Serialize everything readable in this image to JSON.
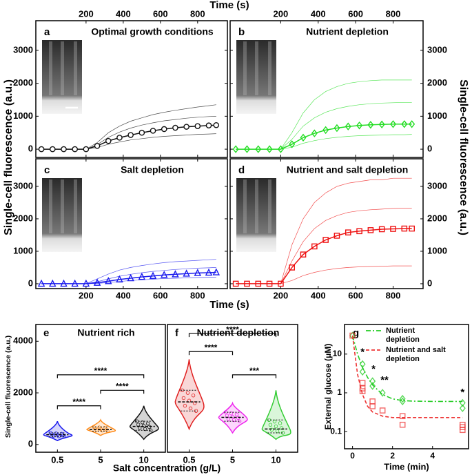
{
  "chart_data": [
    {
      "type": "line",
      "label": "a",
      "title": "Optimal growth conditions",
      "xlabel": "Time (s)",
      "ylabel": "Single-cell fluorescence (a.u.)",
      "x": [
        -40,
        20,
        80,
        140,
        200,
        260,
        320,
        380,
        440,
        500,
        560,
        620,
        680,
        740,
        800,
        860,
        900
      ],
      "values": [
        0,
        0,
        0,
        0,
        0,
        100,
        250,
        350,
        430,
        500,
        560,
        610,
        650,
        680,
        700,
        720,
        730
      ],
      "traces": [
        [
          0,
          0,
          0,
          0,
          0,
          200,
          500,
          700,
          850,
          950,
          1050,
          1120,
          1180,
          1230,
          1280,
          1320,
          1350
        ],
        [
          0,
          0,
          0,
          0,
          0,
          140,
          360,
          520,
          640,
          730,
          800,
          860,
          900,
          940,
          970,
          990,
          1000
        ],
        [
          0,
          0,
          0,
          0,
          0,
          50,
          150,
          220,
          280,
          320,
          360,
          390,
          410,
          430,
          450,
          460,
          470
        ]
      ],
      "color": "#111111",
      "marker": "circle",
      "marker_fill": "#ffffff",
      "xlim": [
        -70,
        960
      ],
      "xticks": [
        200,
        400,
        600,
        800
      ],
      "ylim": [
        -250,
        3900
      ],
      "yticks": [
        0,
        1000,
        2000,
        3000
      ]
    },
    {
      "type": "line",
      "label": "b",
      "title": "Nutrient depletion",
      "ylabel": "Single-cell fluorescence (a.u.)",
      "x": [
        -40,
        20,
        80,
        140,
        200,
        260,
        320,
        380,
        440,
        500,
        560,
        620,
        680,
        740,
        800,
        860,
        900
      ],
      "values": [
        0,
        0,
        0,
        0,
        0,
        150,
        350,
        480,
        580,
        640,
        690,
        720,
        740,
        750,
        760,
        760,
        760
      ],
      "traces": [
        [
          0,
          0,
          0,
          0,
          0,
          500,
          1100,
          1500,
          1750,
          1900,
          2000,
          2050,
          2080,
          2100,
          2100,
          2100,
          2100
        ],
        [
          0,
          0,
          0,
          0,
          0,
          300,
          700,
          950,
          1120,
          1230,
          1300,
          1350,
          1380,
          1400,
          1410,
          1420,
          1420
        ],
        [
          0,
          0,
          0,
          0,
          0,
          60,
          180,
          260,
          320,
          360,
          390,
          410,
          420,
          430,
          440,
          440,
          450
        ]
      ],
      "color": "#22dd22",
      "marker": "diamond",
      "marker_fill": "none",
      "xlim": [
        -70,
        960
      ],
      "xticks": [
        200,
        400,
        600,
        800
      ],
      "ylim": [
        -250,
        3900
      ],
      "yticks": [
        0,
        1000,
        2000,
        3000
      ]
    },
    {
      "type": "line",
      "label": "c",
      "title": "Salt depletion",
      "xlabel": "Time (s)",
      "x": [
        -40,
        20,
        80,
        140,
        200,
        260,
        320,
        380,
        440,
        500,
        560,
        620,
        680,
        740,
        800,
        860,
        900
      ],
      "values": [
        0,
        0,
        0,
        0,
        0,
        30,
        80,
        130,
        170,
        210,
        240,
        270,
        290,
        310,
        330,
        340,
        350
      ],
      "traces": [
        [
          0,
          0,
          0,
          0,
          0,
          150,
          300,
          420,
          500,
          560,
          610,
          650,
          680,
          700,
          720,
          740,
          750
        ],
        [
          0,
          0,
          0,
          0,
          0,
          60,
          150,
          230,
          290,
          340,
          380,
          410,
          440,
          460,
          480,
          490,
          500
        ],
        [
          0,
          0,
          0,
          0,
          0,
          10,
          40,
          70,
          100,
          120,
          140,
          160,
          170,
          180,
          190,
          200,
          200
        ]
      ],
      "color": "#1a1aee",
      "marker": "triangle",
      "marker_fill": "none",
      "xlim": [
        -70,
        960
      ],
      "xticks": [
        200,
        400,
        600,
        800
      ],
      "ylim": [
        -150,
        3850
      ],
      "yticks": [
        0,
        1000,
        2000,
        3000
      ]
    },
    {
      "type": "line",
      "label": "d",
      "title": "Nutrient and salt depletion",
      "x": [
        -40,
        20,
        80,
        140,
        200,
        260,
        320,
        380,
        440,
        500,
        560,
        620,
        680,
        740,
        800,
        860,
        900
      ],
      "values": [
        0,
        0,
        0,
        0,
        0,
        500,
        900,
        1150,
        1350,
        1480,
        1580,
        1620,
        1650,
        1680,
        1690,
        1700,
        1700
      ],
      "traces": [
        [
          0,
          0,
          0,
          0,
          0,
          1200,
          2000,
          2500,
          2800,
          3000,
          3100,
          3150,
          3200,
          3200,
          3250,
          3250,
          3250
        ],
        [
          0,
          0,
          0,
          0,
          0,
          700,
          1300,
          1700,
          1950,
          2100,
          2200,
          2250,
          2280,
          2300,
          2320,
          2330,
          2330
        ],
        [
          0,
          0,
          0,
          0,
          0,
          100,
          250,
          350,
          420,
          470,
          500,
          520,
          530,
          540,
          550,
          550,
          550
        ]
      ],
      "color": "#ee1111",
      "marker": "square",
      "marker_fill": "none",
      "xlim": [
        -70,
        960
      ],
      "xticks": [
        200,
        400,
        600,
        800
      ],
      "ylim": [
        -150,
        3850
      ],
      "yticks": [
        0,
        1000,
        2000,
        3000
      ]
    },
    {
      "type": "violin",
      "label": "e",
      "title": "Nutrient rich",
      "xlabel": "Salt concentration (g/L)",
      "ylabel": "Single-cell fluorescence (a.u.)",
      "categories": [
        "0.5",
        "5",
        "10"
      ],
      "series": [
        {
          "color": "#1a1aee",
          "min": 150,
          "q1": 300,
          "median": 380,
          "q3": 450,
          "max": 900
        },
        {
          "color": "#ff8c1a",
          "min": 350,
          "q1": 520,
          "median": 580,
          "q3": 680,
          "max": 950
        },
        {
          "color": "#111111",
          "min": 200,
          "q1": 550,
          "median": 700,
          "q3": 900,
          "max": 1500
        }
      ],
      "brackets": [
        {
          "between": [
            "0.5",
            "5"
          ],
          "y": 1500,
          "label": "****"
        },
        {
          "between": [
            "5",
            "10"
          ],
          "y": 2100,
          "label": "****"
        },
        {
          "between": [
            "0.5",
            "10"
          ],
          "y": 2700,
          "label": "****"
        }
      ],
      "ylim": [
        -300,
        4650
      ],
      "yticks": [
        0,
        2000,
        4000
      ]
    },
    {
      "type": "violin",
      "label": "f",
      "title": "Nutrient depletion",
      "categories": [
        "0.5",
        "5",
        "10"
      ],
      "series": [
        {
          "color": "#e02020",
          "min": 600,
          "q1": 1300,
          "median": 1650,
          "q3": 2100,
          "max": 3300
        },
        {
          "color": "#ee22ee",
          "min": 450,
          "q1": 900,
          "median": 1050,
          "q3": 1250,
          "max": 1600
        },
        {
          "color": "#33cc33",
          "min": 200,
          "q1": 450,
          "median": 600,
          "q3": 950,
          "max": 2100
        }
      ],
      "brackets": [
        {
          "between": [
            "5",
            "10"
          ],
          "y": 2700,
          "label": "***"
        },
        {
          "between": [
            "0.5",
            "5"
          ],
          "y": 3600,
          "label": "****"
        },
        {
          "between": [
            "0.5",
            "10"
          ],
          "y": 4300,
          "label": "****"
        }
      ],
      "ylim": [
        -300,
        4650
      ]
    },
    {
      "type": "scatter",
      "label": "g",
      "xlabel": "Time (min)",
      "ylabel": "External glucose (μM)",
      "log_y": true,
      "series": [
        {
          "name": "Nutrient depletion",
          "color": "#22cc22",
          "marker": "diamond",
          "dash": "dashdot",
          "x": [
            0,
            0.5,
            0.5,
            1,
            1,
            1.5,
            2.5,
            2.5,
            5.5,
            5.5
          ],
          "values": [
            30,
            5.5,
            3.5,
            2,
            1.5,
            1,
            0.7,
            0.6,
            0.55,
            0.4
          ],
          "fit_x": [
            0,
            0.25,
            0.5,
            0.75,
            1,
            1.5,
            2,
            2.5,
            3,
            4,
            5.5
          ],
          "fit": [
            30,
            10,
            4.5,
            2.5,
            1.6,
            0.9,
            0.7,
            0.63,
            0.61,
            0.6,
            0.6
          ]
        },
        {
          "name": "Nutrient and salt depletion",
          "color": "#ee3333",
          "marker": "square",
          "dash": "dashed",
          "x": [
            0,
            0.5,
            0.5,
            0.5,
            1,
            1,
            1.5,
            2.5,
            2.5,
            5.5,
            5.5,
            5.5
          ],
          "values": [
            30,
            1.8,
            1.3,
            1.1,
            0.6,
            0.45,
            0.35,
            0.25,
            0.15,
            0.15,
            0.13,
            0.11
          ],
          "fit_x": [
            0,
            0.25,
            0.5,
            0.75,
            1,
            1.5,
            2,
            2.5,
            3,
            4,
            5.5
          ],
          "fit": [
            30,
            3,
            0.9,
            0.45,
            0.32,
            0.25,
            0.23,
            0.23,
            0.23,
            0.23,
            0.23
          ]
        }
      ],
      "annotations": [
        {
          "text": "*",
          "x": 0.5,
          "y": 11
        },
        {
          "text": "*",
          "x": 1.05,
          "y": 4
        },
        {
          "text": "**",
          "x": 1.6,
          "y": 2.1
        },
        {
          "text": "*",
          "x": 5.5,
          "y": 1
        }
      ],
      "xlim": [
        -0.4,
        5.8
      ],
      "xticks": [
        0,
        2,
        4
      ],
      "ylim": [
        0.036,
        58
      ],
      "yticks": [
        0.1,
        1,
        10
      ]
    }
  ]
}
